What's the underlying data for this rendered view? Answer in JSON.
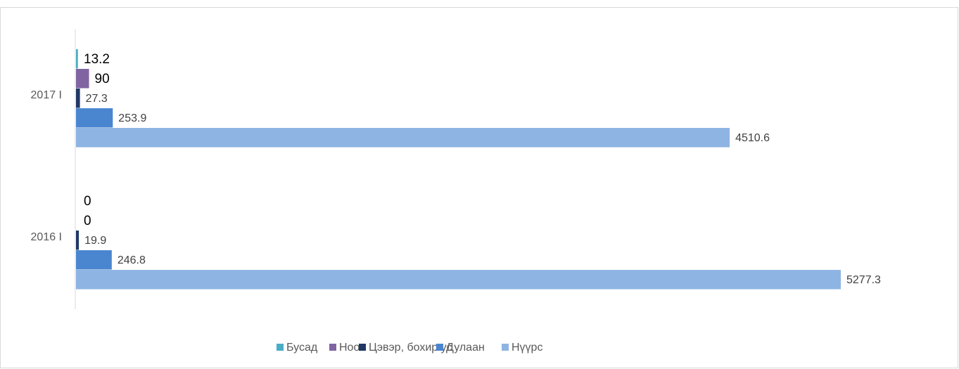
{
  "chart_data": {
    "type": "bar",
    "orientation": "horizontal",
    "categories": [
      "2017 I",
      "2016 I"
    ],
    "series": [
      {
        "name": "Бусад",
        "color": "#4bacc6",
        "values": [
          13.2,
          0
        ]
      },
      {
        "name": "Ноос",
        "color": "#8064a2",
        "values": [
          90,
          0
        ]
      },
      {
        "name": "Цэвэр, бохир ус",
        "color": "#1f3864",
        "values": [
          27.3,
          19.9
        ]
      },
      {
        "name": "Дулаан",
        "color": "#4a86d0",
        "values": [
          253.9,
          246.8
        ]
      },
      {
        "name": "Нүүрс",
        "color": "#8eb4e3",
        "values": [
          4510.6,
          5277.3
        ]
      }
    ],
    "legend": "bottom"
  }
}
